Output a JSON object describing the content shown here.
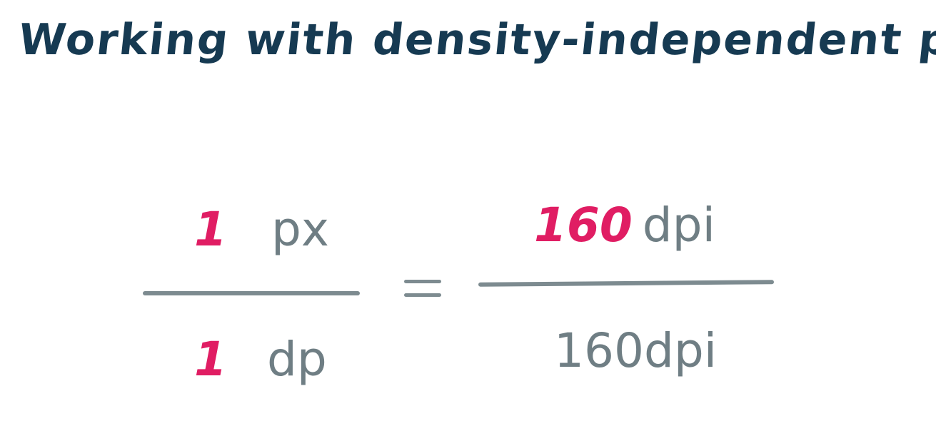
{
  "title": "Working with density-independent pixels",
  "colors": {
    "title": "#163a52",
    "accent": "#e01d63",
    "gray": "#6f7e84"
  },
  "equation": {
    "left": {
      "numerator": {
        "number": "1",
        "unit": "px"
      },
      "denominator": {
        "number": "1",
        "unit": "dp"
      }
    },
    "right": {
      "numerator": {
        "number": "160",
        "unit": "dpi"
      },
      "denominator": {
        "text": "160dpi"
      }
    }
  }
}
